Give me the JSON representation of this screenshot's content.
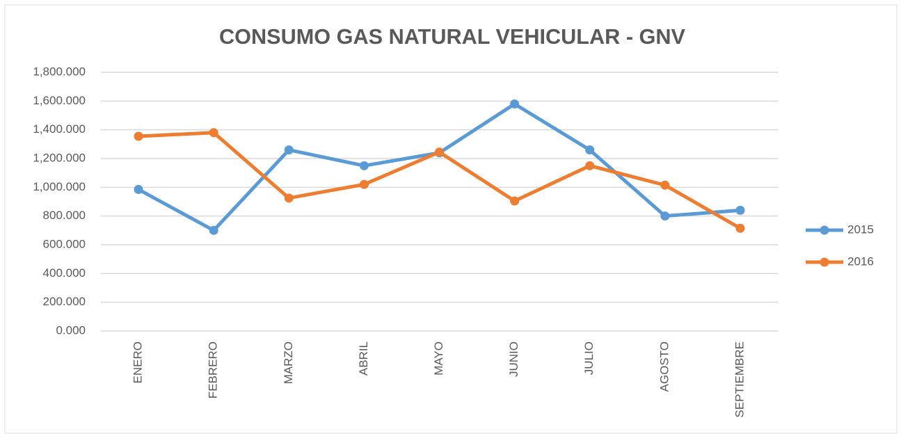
{
  "chart_data": {
    "type": "line",
    "title": "CONSUMO GAS NATURAL VEHICULAR - GNV",
    "categories": [
      "ENERO",
      "FEBRERO",
      "MARZO",
      "ABRIL",
      "MAYO",
      "JUNIO",
      "JULIO",
      "AGOSTO",
      "SEPTIEMBRE"
    ],
    "series": [
      {
        "name": "2015",
        "color": "#5b9bd5",
        "values": [
          985,
          700,
          1260,
          1150,
          1240,
          1580,
          1260,
          800,
          840
        ]
      },
      {
        "name": "2016",
        "color": "#ed7d31",
        "values": [
          1355,
          1380,
          925,
          1020,
          1245,
          905,
          1150,
          1015,
          715
        ]
      }
    ],
    "ylim": [
      0,
      1800
    ],
    "yticks": [
      {
        "value": 0,
        "label": "0.000"
      },
      {
        "value": 200,
        "label": "200.000"
      },
      {
        "value": 400,
        "label": "400.000"
      },
      {
        "value": 600,
        "label": "600.000"
      },
      {
        "value": 800,
        "label": "800.000"
      },
      {
        "value": 1000,
        "label": "1,000.000"
      },
      {
        "value": 1200,
        "label": "1,200.000"
      },
      {
        "value": 1400,
        "label": "1,400.000"
      },
      {
        "value": 1600,
        "label": "1,600.000"
      },
      {
        "value": 1800,
        "label": "1,800.000"
      }
    ],
    "grid": true,
    "legend": "right"
  }
}
